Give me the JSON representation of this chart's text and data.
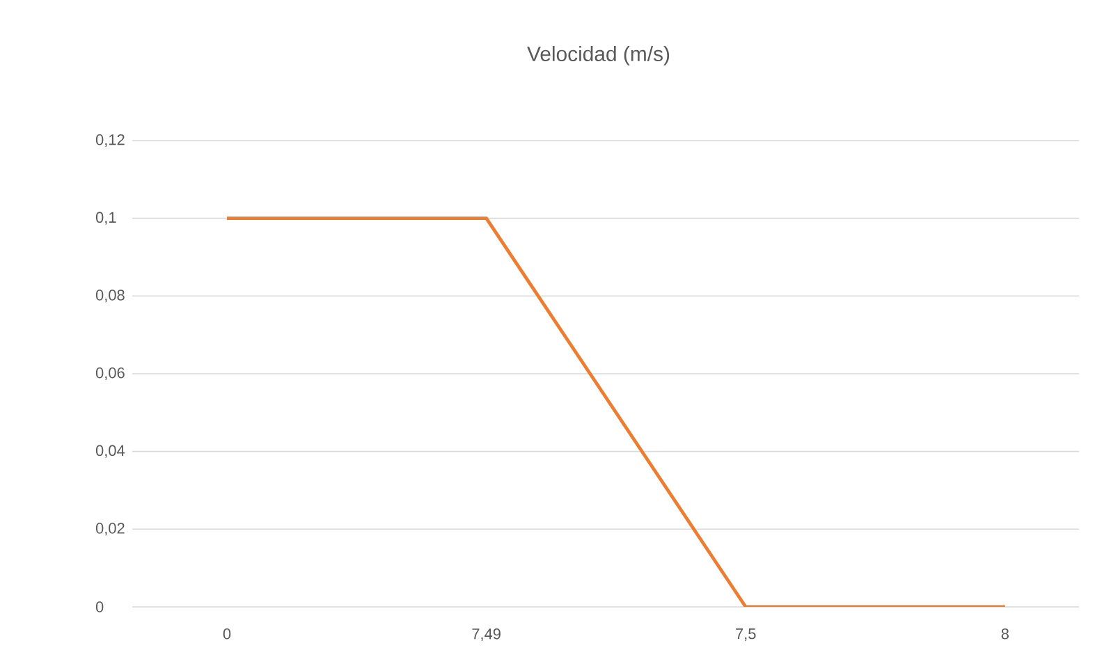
{
  "chart_data": {
    "type": "line",
    "title": "Velocidad (m/s)",
    "categories": [
      "0",
      "7,49",
      "7,5",
      "8"
    ],
    "series": [
      {
        "color": "#ed7d31",
        "values": [
          0.1,
          0.1,
          0,
          0
        ]
      }
    ],
    "ylim": [
      0,
      0.12
    ],
    "yticks": [
      {
        "value": 0,
        "label": "0"
      },
      {
        "value": 0.02,
        "label": "0,02"
      },
      {
        "value": 0.04,
        "label": "0,04"
      },
      {
        "value": 0.06,
        "label": "0,06"
      },
      {
        "value": 0.08,
        "label": "0,08"
      },
      {
        "value": 0.1,
        "label": "0,1"
      },
      {
        "value": 0.12,
        "label": "0,12"
      }
    ],
    "grid": "y"
  }
}
